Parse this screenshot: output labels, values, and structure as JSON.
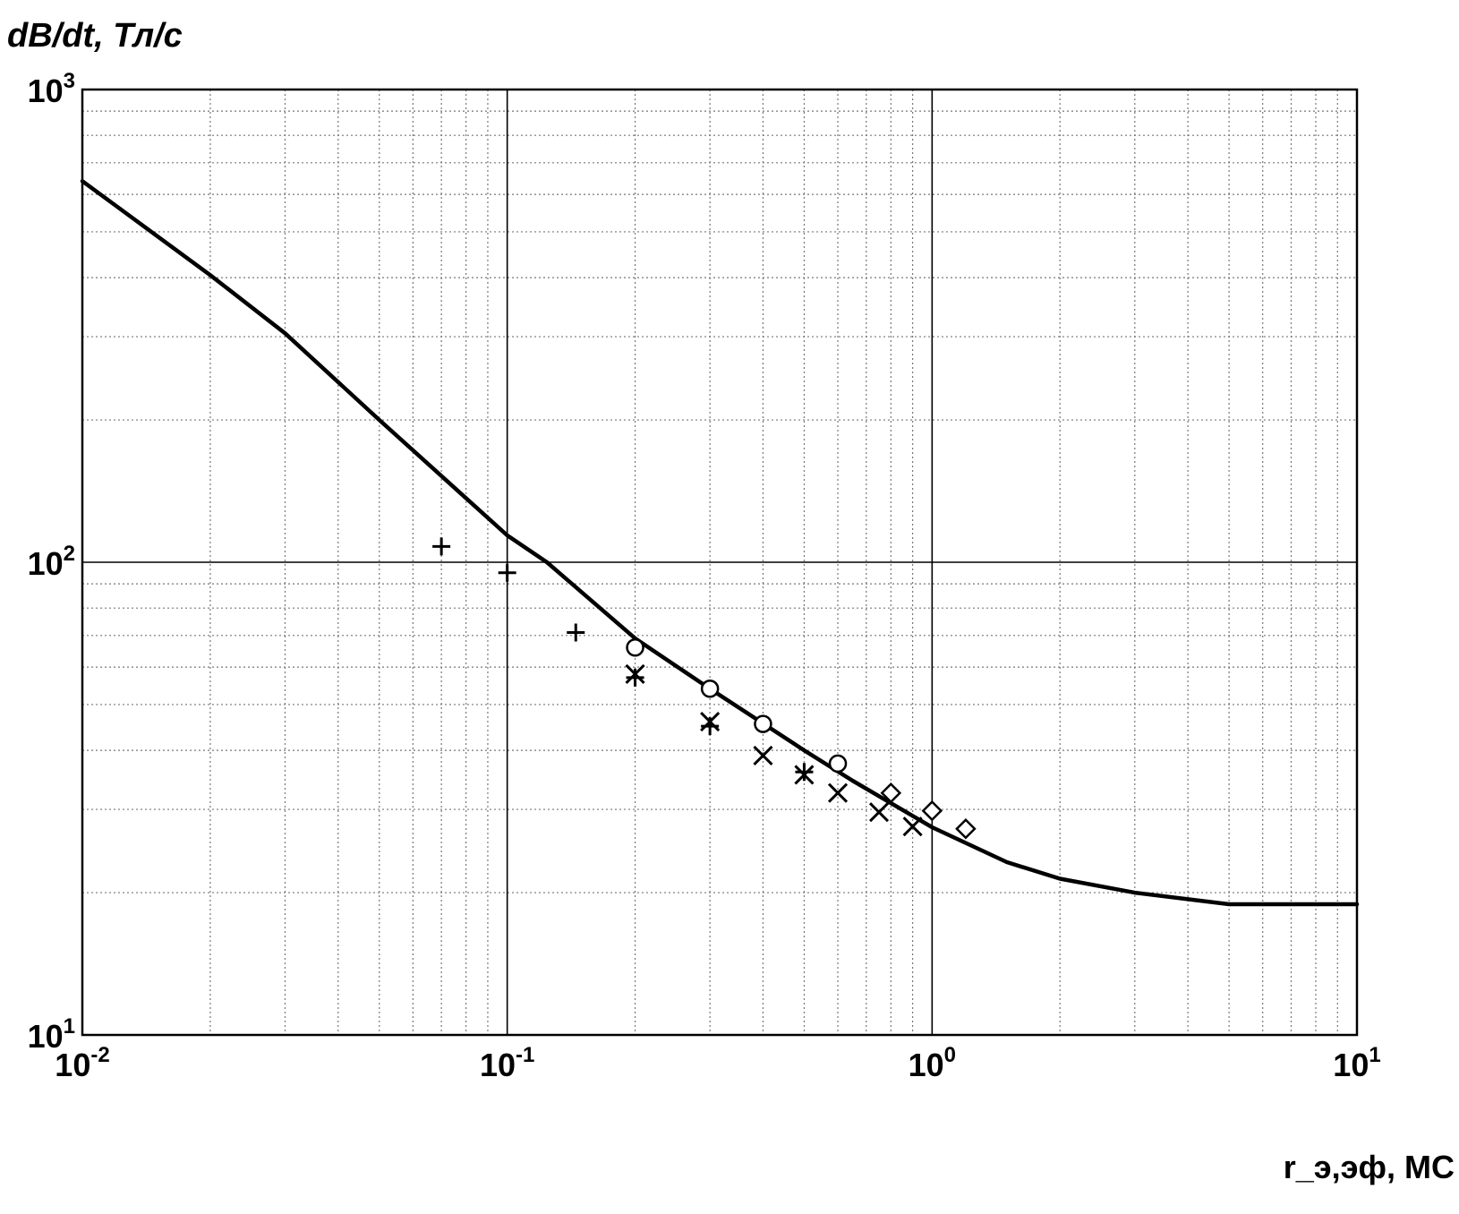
{
  "chart_data": {
    "type": "scatter",
    "title": "",
    "ylabel": "dB/dt, Тл/с",
    "xlabel": "r_э,эф, МС",
    "xscale": "log",
    "yscale": "log",
    "xlim": [
      0.01,
      10
    ],
    "ylim": [
      10,
      1000
    ],
    "grid": true,
    "x_ticks": [
      {
        "base": "10",
        "exp": "-2",
        "value": 0.01
      },
      {
        "base": "10",
        "exp": "-1",
        "value": 0.1
      },
      {
        "base": "10",
        "exp": "0",
        "value": 1
      },
      {
        "base": "10",
        "exp": "1",
        "value": 10
      }
    ],
    "y_ticks": [
      {
        "base": "10",
        "exp": "1",
        "value": 10
      },
      {
        "base": "10",
        "exp": "2",
        "value": 100
      },
      {
        "base": "10",
        "exp": "3",
        "value": 1000
      }
    ],
    "series": [
      {
        "marker": "line",
        "x": [
          0.01,
          0.02,
          0.03,
          0.05,
          0.1,
          0.124,
          0.2,
          0.3,
          0.5,
          0.65,
          1.0,
          1.5,
          2.0,
          3.0,
          5.0,
          10.0
        ],
        "y": [
          640,
          405,
          305,
          200,
          114,
          100,
          69,
          54,
          40,
          34.5,
          27.5,
          23.2,
          21.4,
          20.0,
          18.9,
          18.9
        ]
      },
      {
        "marker": "plus",
        "x": [
          0.07,
          0.1,
          0.145,
          0.2,
          0.3,
          0.5
        ],
        "y": [
          108,
          95,
          71,
          57,
          45,
          36
        ]
      },
      {
        "marker": "x",
        "x": [
          0.2,
          0.3,
          0.4,
          0.5,
          0.6,
          0.75,
          0.9
        ],
        "y": [
          58,
          46,
          39,
          35.5,
          32.5,
          29.6,
          27.6
        ]
      },
      {
        "marker": "circle",
        "x": [
          0.2,
          0.3,
          0.4,
          0.6
        ],
        "y": [
          66,
          54,
          45.5,
          37.5
        ]
      },
      {
        "marker": "diamond",
        "x": [
          0.8,
          1.0,
          1.2
        ],
        "y": [
          32.5,
          29.8,
          27.3
        ]
      }
    ]
  }
}
